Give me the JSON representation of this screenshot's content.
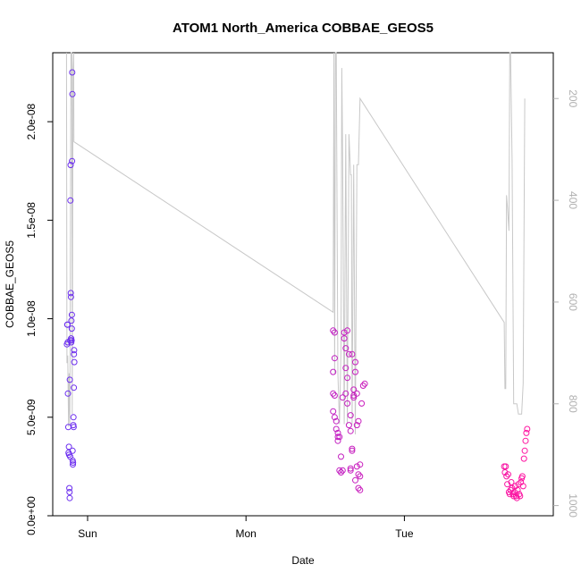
{
  "chart_data": {
    "type": "scatter",
    "title": "ATOM1 North_America COBBAE_GEOS5",
    "xlabel": "Date",
    "ylabel": "COBBAE_GEOS5",
    "x_unit": "days",
    "xlim": [
      -0.22,
      2.94
    ],
    "ylim": [
      0.0,
      2.35e-08
    ],
    "x_ticks": [
      {
        "v": 0,
        "label": "Sun"
      },
      {
        "v": 1,
        "label": "Mon"
      },
      {
        "v": 2,
        "label": "Tue"
      }
    ],
    "y_ticks": [
      {
        "v": 0.0,
        "label": "0.0e+00"
      },
      {
        "v": 5e-09,
        "label": "5.0e-09"
      },
      {
        "v": 1e-08,
        "label": "1.0e-08"
      },
      {
        "v": 1.5e-08,
        "label": "1.5e-08"
      },
      {
        "v": 2e-08,
        "label": "2.0e-08"
      }
    ],
    "y2_ticks": [
      {
        "v": 200,
        "label": "200"
      },
      {
        "v": 400,
        "label": "400"
      },
      {
        "v": 600,
        "label": "600"
      },
      {
        "v": 800,
        "label": "800"
      },
      {
        "v": 1000,
        "label": "1000"
      }
    ],
    "y2lim": [
      1020,
      110
    ],
    "grid": false,
    "colors": {
      "line": "#c8c8c8",
      "early": "#6a2ef0",
      "late": "#ff14a0"
    },
    "series": [
      {
        "style": "points",
        "points": [
          [
            -0.13,
            8.7e-09
          ],
          [
            -0.128,
            9.7e-09
          ],
          [
            -0.127,
            9.7e-09
          ],
          [
            -0.125,
            8.8e-09
          ],
          [
            -0.124,
            6.2e-09
          ],
          [
            -0.122,
            4.5e-09
          ],
          [
            -0.12,
            3.2e-09
          ],
          [
            -0.118,
            3.5e-09
          ],
          [
            -0.117,
            3.1e-09
          ],
          [
            -0.115,
            1.4e-09
          ],
          [
            -0.114,
            1.2e-09
          ],
          [
            -0.113,
            9e-10
          ],
          [
            -0.112,
            6.9e-09
          ],
          [
            -0.11,
            3e-09
          ],
          [
            -0.109,
            8.9e-09
          ],
          [
            -0.108,
            1.6e-08
          ],
          [
            -0.107,
            1.78e-08
          ],
          [
            -0.106,
            1.13e-08
          ],
          [
            -0.105,
            1.11e-08
          ],
          [
            -0.104,
            9e-09
          ],
          [
            -0.103,
            8.8e-09
          ],
          [
            -0.102,
            9.9e-09
          ],
          [
            -0.101,
            8.9e-09
          ],
          [
            -0.1,
            9.5e-09
          ],
          [
            -0.099,
            1.02e-08
          ],
          [
            -0.098,
            1.8e-08
          ],
          [
            -0.097,
            2.25e-08
          ],
          [
            -0.096,
            2.14e-08
          ],
          [
            -0.095,
            3.3e-09
          ],
          [
            -0.094,
            2.8e-09
          ],
          [
            -0.093,
            2.6e-09
          ],
          [
            -0.092,
            2.7e-09
          ],
          [
            -0.09,
            4.6e-09
          ],
          [
            -0.089,
            5e-09
          ],
          [
            -0.088,
            4.5e-09
          ],
          [
            -0.087,
            6.5e-09
          ],
          [
            -0.086,
            8.2e-09
          ],
          [
            -0.085,
            8.4e-09
          ],
          [
            -0.084,
            7.8e-09
          ],
          [
            1.55,
            9.4e-09
          ],
          [
            1.56,
            9.3e-09
          ],
          [
            1.55,
            7.3e-09
          ],
          [
            1.56,
            8e-09
          ],
          [
            1.55,
            6.2e-09
          ],
          [
            1.56,
            6.1e-09
          ],
          [
            1.55,
            5.3e-09
          ],
          [
            1.56,
            5e-09
          ],
          [
            1.57,
            4.8e-09
          ],
          [
            1.57,
            4.4e-09
          ],
          [
            1.58,
            4.2e-09
          ],
          [
            1.58,
            4e-09
          ],
          [
            1.59,
            4e-09
          ],
          [
            1.58,
            3.8e-09
          ],
          [
            1.59,
            2.3e-09
          ],
          [
            1.6,
            2.2e-09
          ],
          [
            1.6,
            3e-09
          ],
          [
            1.61,
            2.3e-09
          ],
          [
            1.61,
            6e-09
          ],
          [
            1.62,
            9.3e-09
          ],
          [
            1.62,
            9e-09
          ],
          [
            1.63,
            7.5e-09
          ],
          [
            1.63,
            8.5e-09
          ],
          [
            1.64,
            9.4e-09
          ],
          [
            1.64,
            7e-09
          ],
          [
            1.65,
            8.2e-09
          ],
          [
            1.65,
            4.6e-09
          ],
          [
            1.66,
            4.3e-09
          ],
          [
            1.66,
            2.3e-09
          ],
          [
            1.67,
            3.4e-09
          ],
          [
            1.67,
            3.3e-09
          ],
          [
            1.68,
            6.4e-09
          ],
          [
            1.68,
            6.1e-09
          ],
          [
            1.69,
            7.8e-09
          ],
          [
            1.69,
            7.3e-09
          ],
          [
            1.7,
            4.6e-09
          ],
          [
            1.7,
            2.5e-09
          ],
          [
            1.71,
            2.1e-09
          ],
          [
            1.71,
            1.4e-09
          ],
          [
            1.72,
            1.3e-09
          ],
          [
            1.72,
            2.6e-09
          ],
          [
            1.73,
            5.7e-09
          ],
          [
            1.74,
            6.6e-09
          ],
          [
            1.75,
            6.7e-09
          ],
          [
            1.63,
            6.2e-09
          ],
          [
            1.64,
            5.7e-09
          ],
          [
            1.66,
            5.1e-09
          ],
          [
            1.67,
            8.2e-09
          ],
          [
            1.68,
            6e-09
          ],
          [
            1.7,
            6.2e-09
          ],
          [
            1.71,
            4.8e-09
          ],
          [
            1.72,
            2e-09
          ],
          [
            1.69,
            1.8e-09
          ],
          [
            1.66,
            2.4e-09
          ],
          [
            2.63,
            2.5e-09
          ],
          [
            2.635,
            2.2e-09
          ],
          [
            2.64,
            2.5e-09
          ],
          [
            2.645,
            2e-09
          ],
          [
            2.65,
            1.6e-09
          ],
          [
            2.655,
            2.1e-09
          ],
          [
            2.66,
            1.2e-09
          ],
          [
            2.665,
            1.1e-09
          ],
          [
            2.67,
            1.3e-09
          ],
          [
            2.675,
            1.7e-09
          ],
          [
            2.68,
            1.4e-09
          ],
          [
            2.685,
            1.1e-09
          ],
          [
            2.69,
            1e-09
          ],
          [
            2.695,
            1.2e-09
          ],
          [
            2.7,
            1.5e-09
          ],
          [
            2.705,
            1e-09
          ],
          [
            2.71,
            9e-10
          ],
          [
            2.715,
            1.3e-09
          ],
          [
            2.72,
            1.6e-09
          ],
          [
            2.725,
            1.1e-09
          ],
          [
            2.73,
            1e-09
          ],
          [
            2.735,
            1.7e-09
          ],
          [
            2.74,
            1.9e-09
          ],
          [
            2.745,
            2e-09
          ],
          [
            2.75,
            1.5e-09
          ],
          [
            2.755,
            2.9e-09
          ],
          [
            2.76,
            3.3e-09
          ],
          [
            2.765,
            3.8e-09
          ],
          [
            2.77,
            4.2e-09
          ],
          [
            2.775,
            4.4e-09
          ]
        ]
      },
      {
        "style": "line",
        "axis": "right",
        "points": [
          [
            -0.133,
            110
          ],
          [
            -0.13,
            720
          ],
          [
            -0.125,
            705
          ],
          [
            -0.12,
            845
          ],
          [
            -0.117,
            740
          ],
          [
            -0.112,
            840
          ],
          [
            -0.109,
            500
          ],
          [
            -0.105,
            110
          ],
          [
            -0.1,
            110
          ],
          [
            -0.097,
            820
          ],
          [
            -0.092,
            140
          ],
          [
            -0.088,
            110
          ],
          [
            -0.086,
            285
          ],
          [
            1.55,
            620
          ],
          [
            1.555,
            110
          ],
          [
            1.56,
            740
          ],
          [
            1.565,
            110
          ],
          [
            1.57,
            110
          ],
          [
            1.58,
            740
          ],
          [
            1.59,
            840
          ],
          [
            1.6,
            690
          ],
          [
            1.605,
            140
          ],
          [
            1.61,
            310
          ],
          [
            1.62,
            840
          ],
          [
            1.63,
            270
          ],
          [
            1.64,
            840
          ],
          [
            1.65,
            270
          ],
          [
            1.66,
            350
          ],
          [
            1.665,
            350
          ],
          [
            1.67,
            840
          ],
          [
            1.68,
            330
          ],
          [
            1.69,
            860
          ],
          [
            1.7,
            330
          ],
          [
            1.705,
            330
          ],
          [
            1.71,
            330
          ],
          [
            1.72,
            200
          ],
          [
            2.63,
            640
          ],
          [
            2.635,
            770
          ],
          [
            2.64,
            770
          ],
          [
            2.645,
            390
          ],
          [
            2.65,
            410
          ],
          [
            2.66,
            460
          ],
          [
            2.665,
            110
          ],
          [
            2.67,
            110
          ],
          [
            2.68,
            320
          ],
          [
            2.69,
            800
          ],
          [
            2.7,
            800
          ],
          [
            2.71,
            800
          ],
          [
            2.72,
            820
          ],
          [
            2.73,
            820
          ],
          [
            2.74,
            820
          ],
          [
            2.75,
            760
          ],
          [
            2.76,
            200
          ]
        ]
      }
    ]
  }
}
